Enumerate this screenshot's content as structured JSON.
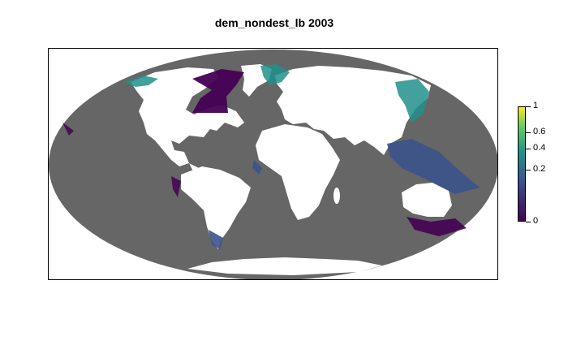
{
  "title": "dem_nondest_lb 2003",
  "legend": {
    "ticks": [
      {
        "label": "1",
        "value": 1
      },
      {
        "label": "0.6",
        "value": 0.6
      },
      {
        "label": "0.4",
        "value": 0.4
      },
      {
        "label": "0.2",
        "value": 0.2
      },
      {
        "label": "0",
        "value": 0
      }
    ],
    "colors": [
      "#440154",
      "#3b528b",
      "#21918c",
      "#5ec962",
      "#fde725"
    ]
  },
  "colors": {
    "ocean": "#666666",
    "land": "#ffffff",
    "low_value": "#440154",
    "mid_value": "#21918c",
    "blue_value": "#3b528b"
  }
}
